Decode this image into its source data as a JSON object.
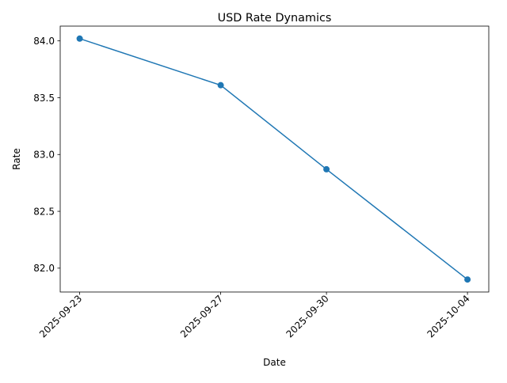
{
  "chart_data": {
    "type": "line",
    "title": "USD Rate Dynamics",
    "xlabel": "Date",
    "ylabel": "Rate",
    "x": [
      "2025-09-23",
      "2025-09-27",
      "2025-09-30",
      "2025-10-04"
    ],
    "series": [
      {
        "values": [
          84.02,
          83.61,
          82.87,
          81.9
        ],
        "color": "#1f77b4",
        "marker": "circle"
      }
    ],
    "y_ticks": [
      "82.0",
      "82.5",
      "83.0",
      "83.5",
      "84.0"
    ],
    "ylim": [
      81.79,
      84.13
    ],
    "x_tick_rotation": "45 degrees",
    "grid": false,
    "legend": "none"
  }
}
